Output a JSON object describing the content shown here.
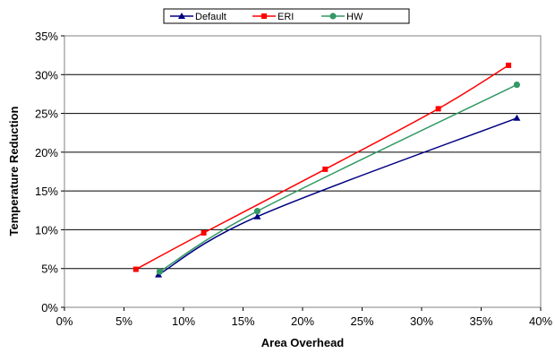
{
  "chart_data": {
    "type": "line",
    "title": "",
    "xlabel": "Area Overhead",
    "ylabel": "Temperature Reduction",
    "xlim": [
      0,
      0.4
    ],
    "ylim": [
      0,
      0.35
    ],
    "x_ticks": [
      "0%",
      "5%",
      "10%",
      "15%",
      "20%",
      "25%",
      "30%",
      "35%",
      "40%"
    ],
    "y_ticks": [
      "0%",
      "5%",
      "10%",
      "15%",
      "20%",
      "25%",
      "30%",
      "35%"
    ],
    "grid": "horizontal",
    "legend_position": "top-center",
    "series": [
      {
        "name": "Default",
        "color": "#000080",
        "marker": "triangle",
        "x": [
          0.079,
          0.162,
          0.38
        ],
        "y": [
          0.042,
          0.117,
          0.244
        ]
      },
      {
        "name": "ERI",
        "color": "#ff0000",
        "marker": "square",
        "x": [
          0.06,
          0.117,
          0.219,
          0.314,
          0.373
        ],
        "y": [
          0.049,
          0.096,
          0.178,
          0.256,
          0.312
        ]
      },
      {
        "name": "HW",
        "color": "#339966",
        "marker": "circle",
        "x": [
          0.08,
          0.162,
          0.38
        ],
        "y": [
          0.046,
          0.124,
          0.287
        ]
      }
    ]
  }
}
